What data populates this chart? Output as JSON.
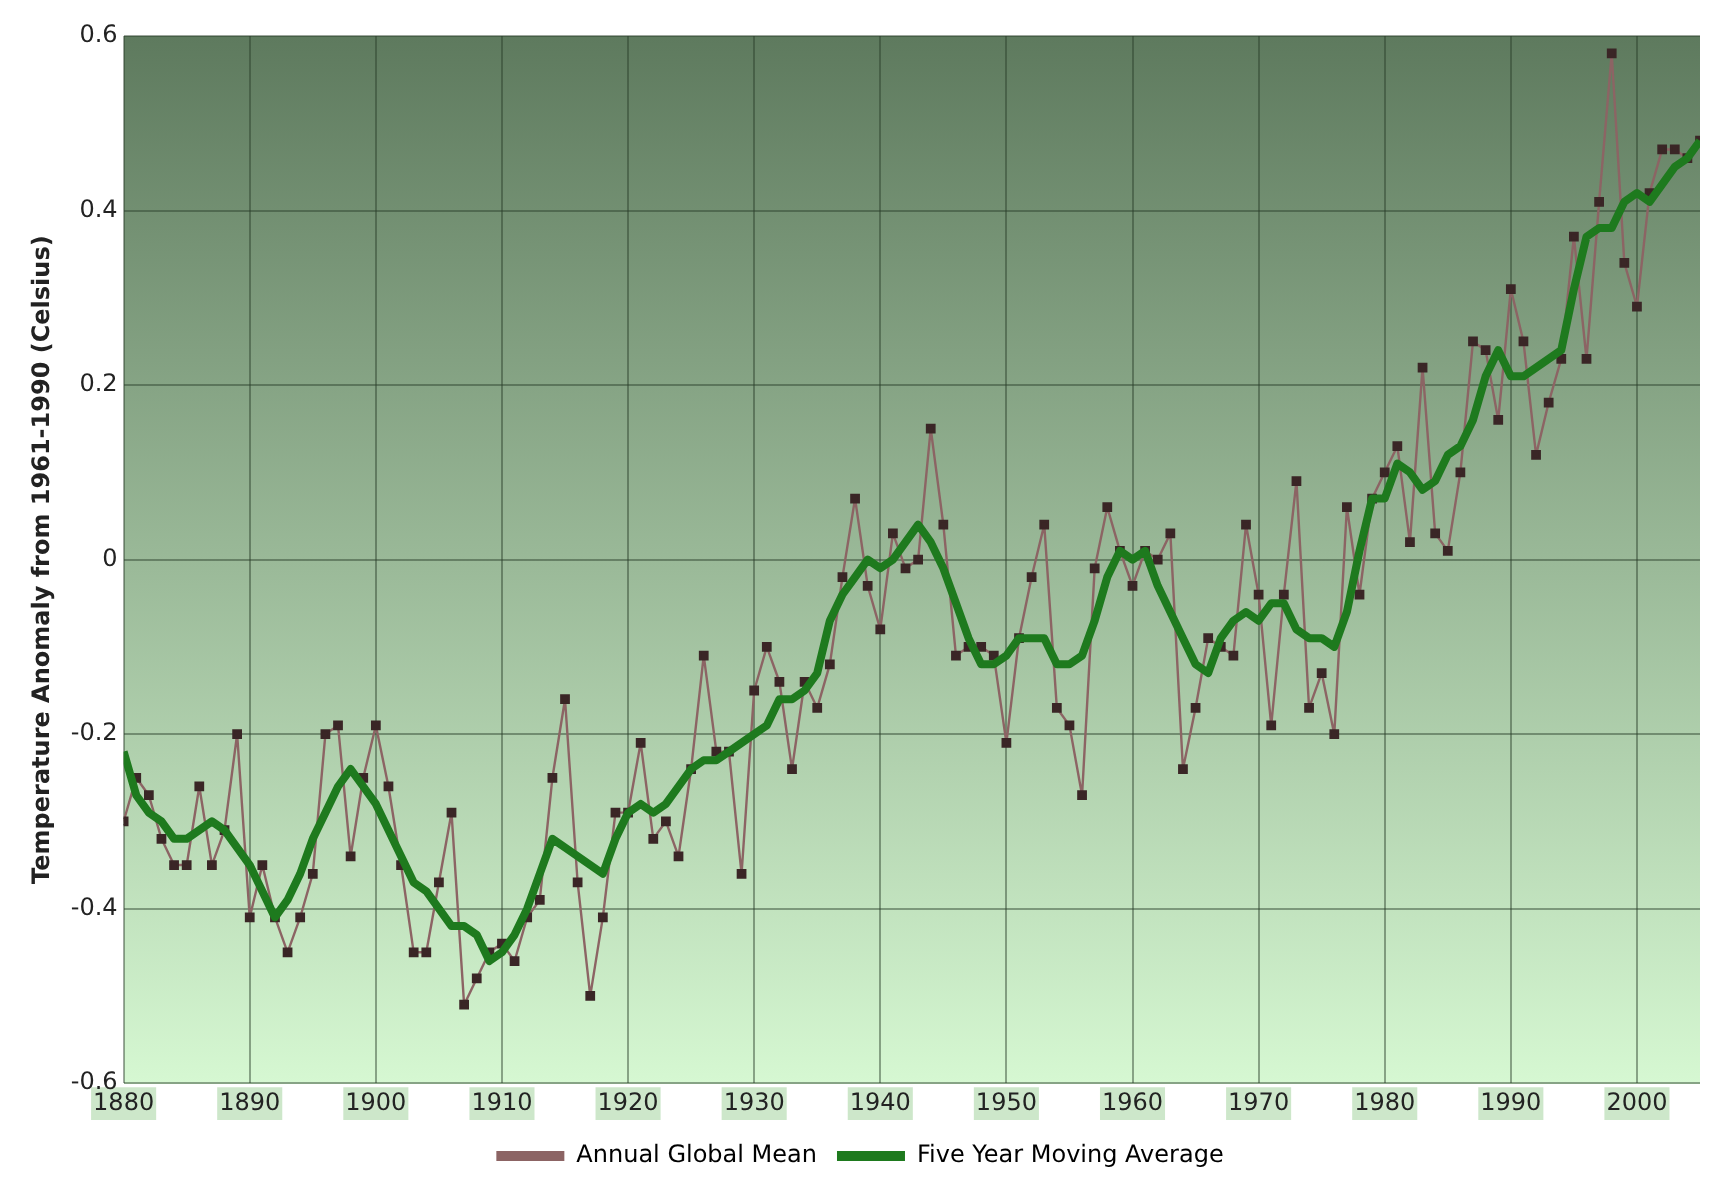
{
  "chart_data": {
    "type": "line",
    "ylabel": "Temperature Anomaly from 1961-1990 (Celsius)",
    "x": [
      1880,
      1881,
      1882,
      1883,
      1884,
      1885,
      1886,
      1887,
      1888,
      1889,
      1890,
      1891,
      1892,
      1893,
      1894,
      1895,
      1896,
      1897,
      1898,
      1899,
      1900,
      1901,
      1902,
      1903,
      1904,
      1905,
      1906,
      1907,
      1908,
      1909,
      1910,
      1911,
      1912,
      1913,
      1914,
      1915,
      1916,
      1917,
      1918,
      1919,
      1920,
      1921,
      1922,
      1923,
      1924,
      1925,
      1926,
      1927,
      1928,
      1929,
      1930,
      1931,
      1932,
      1933,
      1934,
      1935,
      1936,
      1937,
      1938,
      1939,
      1940,
      1941,
      1942,
      1943,
      1944,
      1945,
      1946,
      1947,
      1948,
      1949,
      1950,
      1951,
      1952,
      1953,
      1954,
      1955,
      1956,
      1957,
      1958,
      1959,
      1960,
      1961,
      1962,
      1963,
      1964,
      1965,
      1966,
      1967,
      1968,
      1969,
      1970,
      1971,
      1972,
      1973,
      1974,
      1975,
      1976,
      1977,
      1978,
      1979,
      1980,
      1981,
      1982,
      1983,
      1984,
      1985,
      1986,
      1987,
      1988,
      1989,
      1990,
      1991,
      1992,
      1993,
      1994,
      1995,
      1996,
      1997,
      1998,
      1999,
      2000,
      2001,
      2002,
      2003,
      2004,
      2005
    ],
    "series": [
      {
        "name": "Annual Global Mean",
        "color": "#8c6464",
        "marker": "square",
        "values": [
          -0.3,
          -0.25,
          -0.27,
          -0.32,
          -0.35,
          -0.35,
          -0.26,
          -0.35,
          -0.31,
          -0.2,
          -0.41,
          -0.35,
          -0.41,
          -0.45,
          -0.41,
          -0.36,
          -0.2,
          -0.19,
          -0.34,
          -0.25,
          -0.19,
          -0.26,
          -0.35,
          -0.45,
          -0.45,
          -0.37,
          -0.29,
          -0.51,
          -0.48,
          -0.45,
          -0.44,
          -0.46,
          -0.41,
          -0.39,
          -0.25,
          -0.16,
          -0.37,
          -0.5,
          -0.41,
          -0.29,
          -0.29,
          -0.21,
          -0.32,
          -0.3,
          -0.34,
          -0.24,
          -0.11,
          -0.22,
          -0.22,
          -0.36,
          -0.15,
          -0.1,
          -0.14,
          -0.24,
          -0.14,
          -0.17,
          -0.12,
          -0.02,
          0.07,
          -0.03,
          -0.08,
          0.03,
          -0.01,
          0.0,
          0.15,
          0.04,
          -0.11,
          -0.1,
          -0.1,
          -0.11,
          -0.21,
          -0.09,
          -0.02,
          0.04,
          -0.17,
          -0.19,
          -0.27,
          -0.01,
          0.06,
          0.01,
          -0.03,
          0.01,
          0.0,
          0.03,
          -0.24,
          -0.17,
          -0.09,
          -0.1,
          -0.11,
          0.04,
          -0.04,
          -0.19,
          -0.04,
          0.09,
          -0.17,
          -0.13,
          -0.2,
          0.06,
          -0.04,
          0.07,
          0.1,
          0.13,
          0.02,
          0.22,
          0.03,
          0.01,
          0.1,
          0.25,
          0.24,
          0.16,
          0.31,
          0.25,
          0.12,
          0.18,
          0.23,
          0.37,
          0.23,
          0.41,
          0.58,
          0.34,
          0.29,
          0.42,
          0.47,
          0.47,
          0.46,
          0.48
        ]
      },
      {
        "name": "Five Year Moving Average",
        "color": "#1e7a1e",
        "marker": "none",
        "values": [
          -0.22,
          -0.27,
          -0.29,
          -0.3,
          -0.32,
          -0.32,
          -0.31,
          -0.3,
          -0.31,
          -0.33,
          -0.35,
          -0.38,
          -0.41,
          -0.39,
          -0.36,
          -0.32,
          -0.29,
          -0.26,
          -0.24,
          -0.26,
          -0.28,
          -0.31,
          -0.34,
          -0.37,
          -0.38,
          -0.4,
          -0.42,
          -0.42,
          -0.43,
          -0.46,
          -0.45,
          -0.43,
          -0.4,
          -0.36,
          -0.32,
          -0.33,
          -0.34,
          -0.35,
          -0.36,
          -0.32,
          -0.29,
          -0.28,
          -0.29,
          -0.28,
          -0.26,
          -0.24,
          -0.23,
          -0.23,
          -0.22,
          -0.21,
          -0.2,
          -0.19,
          -0.16,
          -0.16,
          -0.15,
          -0.13,
          -0.07,
          -0.04,
          -0.02,
          0.0,
          -0.01,
          0.0,
          0.02,
          0.04,
          0.02,
          -0.01,
          -0.05,
          -0.09,
          -0.12,
          -0.12,
          -0.11,
          -0.09,
          -0.09,
          -0.09,
          -0.12,
          -0.12,
          -0.11,
          -0.07,
          -0.02,
          0.01,
          0.0,
          0.01,
          -0.03,
          -0.06,
          -0.09,
          -0.12,
          -0.13,
          -0.09,
          -0.07,
          -0.06,
          -0.07,
          -0.05,
          -0.05,
          -0.08,
          -0.09,
          -0.09,
          -0.1,
          -0.06,
          0.01,
          0.07,
          0.07,
          0.11,
          0.1,
          0.08,
          0.09,
          0.12,
          0.13,
          0.16,
          0.21,
          0.24,
          0.21,
          0.21,
          0.22,
          0.23,
          0.24,
          0.31,
          0.37,
          0.38,
          0.38,
          0.41,
          0.42,
          0.41,
          0.43,
          0.45,
          0.46,
          0.48
        ]
      }
    ],
    "xlim": [
      1880,
      2005
    ],
    "xticks": [
      1880,
      1890,
      1900,
      1910,
      1920,
      1930,
      1940,
      1950,
      1960,
      1970,
      1980,
      1990,
      2000
    ],
    "ylim": [
      -0.6,
      0.6
    ],
    "yticks": [
      -0.6,
      -0.4,
      -0.2,
      0,
      0.2,
      0.4,
      0.6
    ],
    "grid": true,
    "legend": "bottom"
  }
}
